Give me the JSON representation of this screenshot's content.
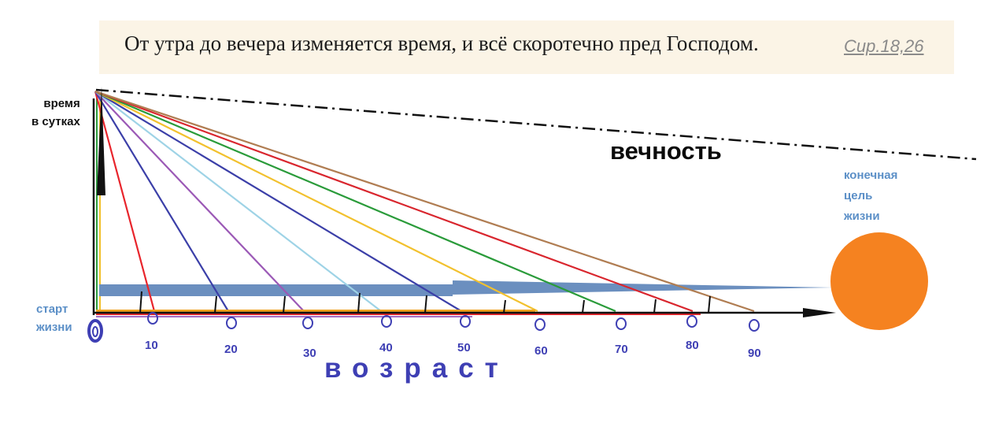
{
  "quote": {
    "text": "От утра до вечера изменяется время, и всё скоротечно пред Господом.",
    "reference": "Сир.18,26"
  },
  "labels": {
    "y_axis_line1": "время",
    "y_axis_line2": "в сутках",
    "eternity": "вечность",
    "goal_line1": "конечная",
    "goal_line2": "цель",
    "goal_line3": "жизни",
    "start_line1": "старт",
    "start_line2": "жизни",
    "x_axis": "возраст"
  },
  "colors": {
    "sun": "#f58220",
    "arrow_band": "#6b8fbf",
    "label_blue": "#5b8fc7",
    "tick_blue": "#3e3fb4"
  },
  "ages": [
    {
      "label": "10",
      "color": "#e8252c"
    },
    {
      "label": "20",
      "color": "#3b3fa8"
    },
    {
      "label": "30",
      "color": "#9b59b6"
    },
    {
      "label": "40",
      "color": "#9ed3e6"
    },
    {
      "label": "50",
      "color": "#3b3fa8"
    },
    {
      "label": "60",
      "color": "#f2c12e"
    },
    {
      "label": "70",
      "color": "#2a9b3a"
    },
    {
      "label": "80",
      "color": "#d9262e"
    },
    {
      "label": "90",
      "color": "#b07d52"
    }
  ]
}
